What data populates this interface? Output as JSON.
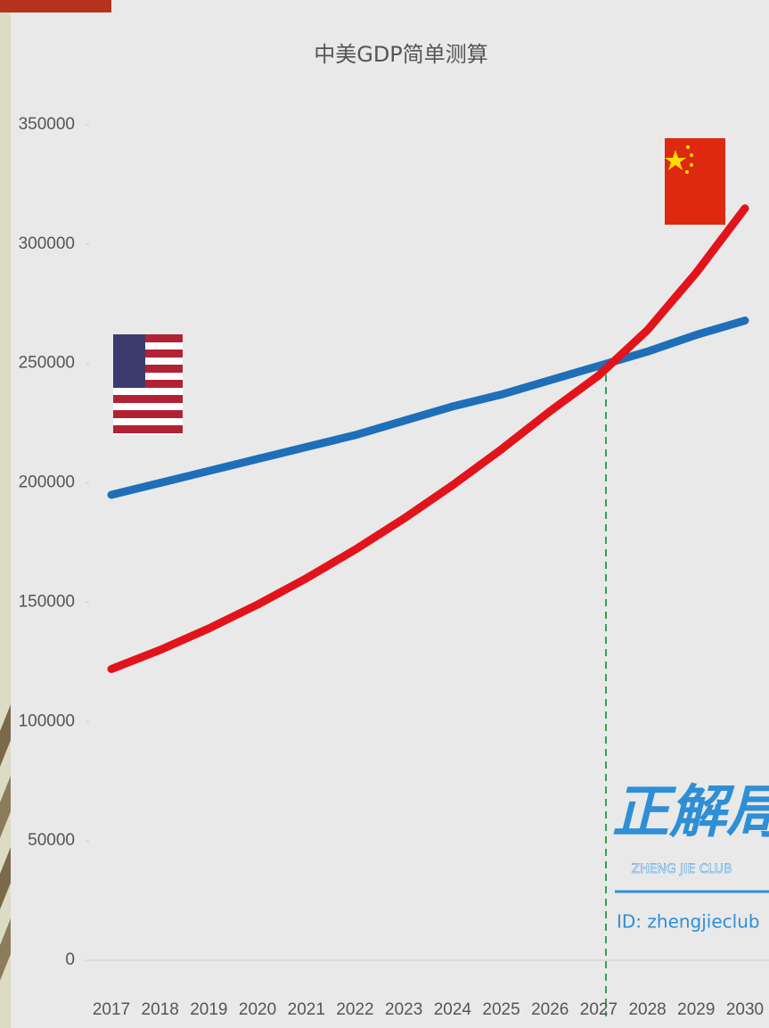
{
  "chart_data": {
    "type": "line",
    "title": "中美GDP简单测算",
    "categories": [
      "2017",
      "2018",
      "2019",
      "2020",
      "2021",
      "2022",
      "2023",
      "2024",
      "2025",
      "2026",
      "2027",
      "2028",
      "2029",
      "2030"
    ],
    "series": [
      {
        "color": "#1f6fb8",
        "values": [
          195000,
          200000,
          205000,
          210000,
          215000,
          220000,
          226000,
          232000,
          237000,
          243000,
          249000,
          255000,
          262000,
          268000
        ]
      },
      {
        "color": "#e3131b",
        "values": [
          122000,
          130000,
          139000,
          149000,
          160000,
          172000,
          185000,
          199000,
          214000,
          230000,
          245000,
          264000,
          288000,
          315000
        ]
      }
    ],
    "ylim": [
      0,
      350000
    ],
    "yticks": [
      0,
      50000,
      100000,
      150000,
      200000,
      250000,
      300000,
      350000
    ],
    "watermark": {
      "logo": "正解局",
      "club": "ZHENG JIE CLUB",
      "id": "ID: zhengjieclub"
    }
  }
}
